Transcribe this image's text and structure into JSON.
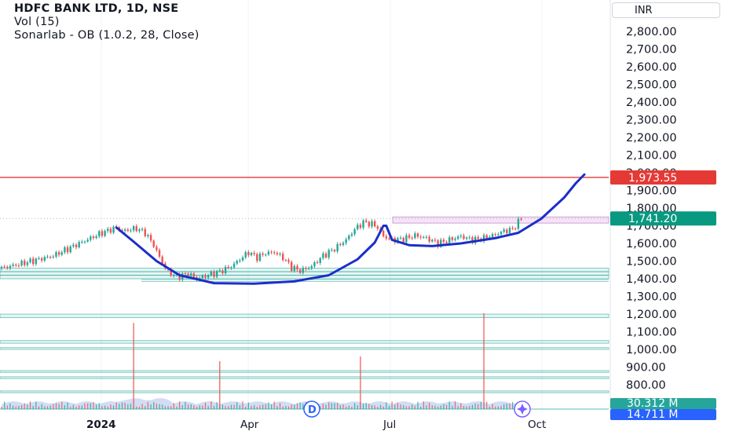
{
  "legend": {
    "title": "HDFC BANK LTD, 1D, NSE",
    "indicator1": "Vol (15)",
    "indicator2": "Sonarlab - OB (1.0.2, 28, Close)"
  },
  "currency_label": "INR",
  "colors": {
    "up": "#26a69a",
    "down": "#ef5350",
    "resistance": "#e53935",
    "cup_curve": "#1a2fc9",
    "ob_zone": "#26a69a",
    "volume_area": "#7e9fe0",
    "last_price_badge": "#089981"
  },
  "chart_data": {
    "type": "candlestick",
    "title": "HDFC BANK LTD, 1D, NSE",
    "y_axis": {
      "range": [
        700,
        2900
      ],
      "ticks": [
        "2,800.00",
        "2,700.00",
        "2,600.00",
        "2,500.00",
        "2,400.00",
        "2,300.00",
        "2,200.00",
        "2,100.00",
        "2,000.00",
        "1,900.00",
        "1,800.00",
        "1,700.00",
        "1,600.00",
        "1,500.00",
        "1,400.00",
        "1,300.00",
        "1,200.00",
        "1,100.00",
        "1,000.00",
        "900.00",
        "800.00"
      ]
    },
    "x_axis": {
      "ticks": [
        {
          "label": "2024",
          "bold": true
        },
        {
          "label": "Apr",
          "bold": false
        },
        {
          "label": "Jul",
          "bold": false
        },
        {
          "label": "Oct",
          "bold": false
        }
      ]
    },
    "price_path": [
      [
        0,
        1460
      ],
      [
        8,
        1490
      ],
      [
        18,
        1530
      ],
      [
        27,
        1600
      ],
      [
        35,
        1660
      ],
      [
        40,
        1690
      ],
      [
        42,
        1670
      ],
      [
        47,
        1685
      ],
      [
        50,
        1660
      ],
      [
        53,
        1590
      ],
      [
        56,
        1490
      ],
      [
        58,
        1440
      ],
      [
        61,
        1410
      ],
      [
        65,
        1430
      ],
      [
        68,
        1400
      ],
      [
        72,
        1420
      ],
      [
        76,
        1440
      ],
      [
        80,
        1470
      ],
      [
        83,
        1510
      ],
      [
        86,
        1550
      ],
      [
        89,
        1520
      ],
      [
        92,
        1545
      ],
      [
        95,
        1550
      ],
      [
        98,
        1520
      ],
      [
        101,
        1465
      ],
      [
        104,
        1445
      ],
      [
        108,
        1470
      ],
      [
        112,
        1530
      ],
      [
        116,
        1570
      ],
      [
        120,
        1620
      ],
      [
        123,
        1680
      ],
      [
        126,
        1720
      ],
      [
        129,
        1710
      ],
      [
        131,
        1690
      ],
      [
        133,
        1640
      ],
      [
        136,
        1620
      ],
      [
        140,
        1625
      ],
      [
        144,
        1645
      ],
      [
        148,
        1630
      ],
      [
        152,
        1600
      ],
      [
        156,
        1620
      ],
      [
        160,
        1640
      ],
      [
        164,
        1620
      ],
      [
        168,
        1630
      ],
      [
        172,
        1650
      ],
      [
        175,
        1670
      ],
      [
        178,
        1680
      ],
      [
        181,
        1741.2
      ]
    ],
    "resistance": {
      "value": 1973.55,
      "label": "1,973.55"
    },
    "last_price": {
      "value": 1741.2,
      "label": "1,741.20"
    },
    "ob_zone": [
      1715,
      1750
    ],
    "cup_curve": [
      [
        40,
        1690
      ],
      [
        46,
        1610
      ],
      [
        54,
        1500
      ],
      [
        62,
        1420
      ],
      [
        74,
        1375
      ],
      [
        88,
        1372
      ],
      [
        102,
        1385
      ],
      [
        114,
        1420
      ],
      [
        124,
        1510
      ],
      [
        130,
        1605
      ],
      [
        133,
        1700
      ],
      [
        134,
        1700
      ],
      [
        136,
        1620
      ],
      [
        142,
        1590
      ],
      [
        150,
        1585
      ],
      [
        160,
        1600
      ],
      [
        172,
        1630
      ],
      [
        180,
        1660
      ],
      [
        188,
        1740
      ],
      [
        196,
        1860
      ],
      [
        200,
        1940
      ],
      [
        203,
        1990
      ]
    ],
    "support_bands": [
      [
        1400,
        1420
      ],
      [
        1420,
        1440
      ],
      [
        1440,
        1460
      ],
      [
        1180,
        1200
      ],
      [
        1035,
        1050
      ],
      [
        1000,
        1010
      ],
      [
        870,
        880
      ],
      [
        835,
        845
      ],
      [
        755,
        765
      ]
    ],
    "volume": {
      "labels": [
        "30.312 M",
        "14.711 M"
      ],
      "spikes": [
        {
          "x": 46,
          "h": 0.9
        },
        {
          "x": 76,
          "h": 0.5
        },
        {
          "x": 125,
          "h": 0.55
        },
        {
          "x": 168,
          "h": 1.0
        }
      ]
    }
  }
}
